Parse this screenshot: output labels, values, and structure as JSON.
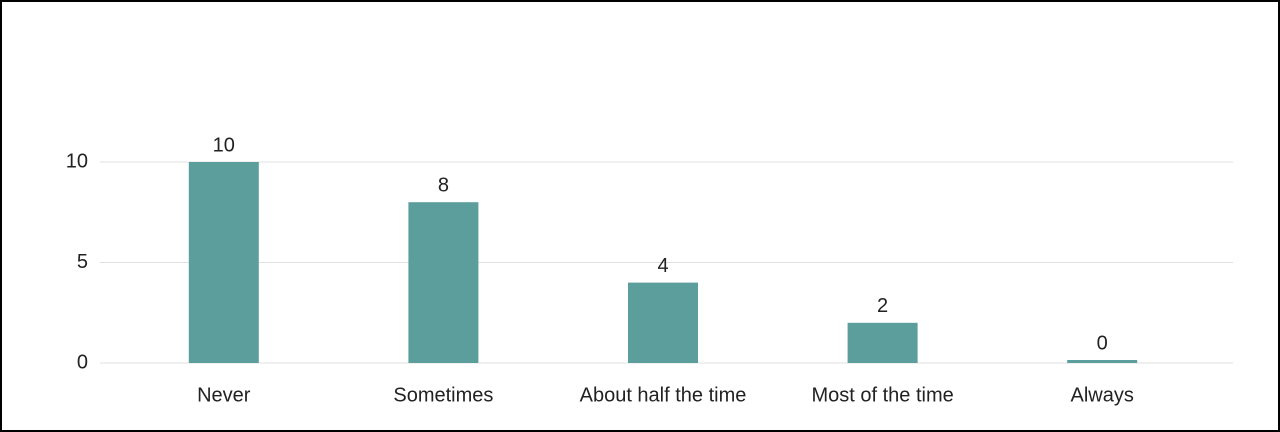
{
  "chart_data": {
    "type": "bar",
    "categories": [
      "Never",
      "Sometimes",
      "About half the time",
      "Most of the time",
      "Always"
    ],
    "values": [
      10,
      8,
      4,
      2,
      0
    ],
    "color": "#5b9e9c",
    "ylim": [
      0,
      10
    ],
    "yticks": [
      0,
      5,
      10
    ],
    "grid": true
  }
}
